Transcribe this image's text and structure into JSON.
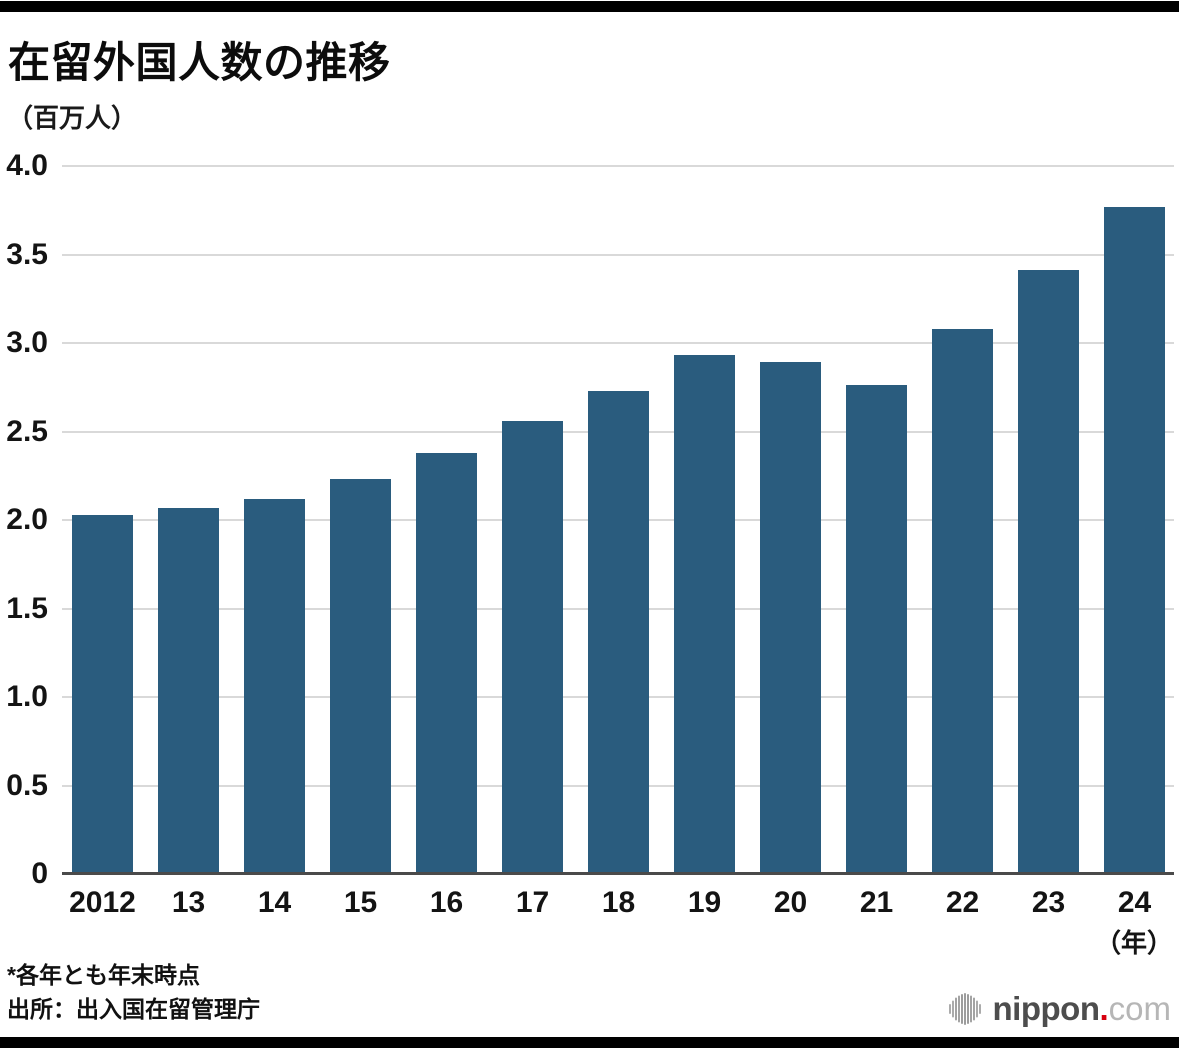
{
  "header": {
    "title": "在留外国人数の推移",
    "unit_label": "（百万人）"
  },
  "chart_data": {
    "type": "bar",
    "title": "在留外国人数の推移",
    "ylabel": "（百万人）",
    "xlabel_unit": "（年）",
    "categories": [
      "2012",
      "13",
      "14",
      "15",
      "16",
      "17",
      "18",
      "19",
      "20",
      "21",
      "22",
      "23",
      "24"
    ],
    "values": [
      2.03,
      2.07,
      2.12,
      2.23,
      2.38,
      2.56,
      2.73,
      2.93,
      2.89,
      2.76,
      3.08,
      3.41,
      3.77
    ],
    "ylim": [
      0,
      4.0
    ],
    "yticks": [
      {
        "value": 4.0,
        "label": "4.0"
      },
      {
        "value": 3.5,
        "label": "3.5"
      },
      {
        "value": 3.0,
        "label": "3.0"
      },
      {
        "value": 2.5,
        "label": "2.5"
      },
      {
        "value": 2.0,
        "label": "2.0"
      },
      {
        "value": 1.5,
        "label": "1.5"
      },
      {
        "value": 1.0,
        "label": "1.0"
      },
      {
        "value": 0.5,
        "label": "0.5"
      },
      {
        "value": 0,
        "label": "0"
      }
    ],
    "grid": true,
    "legend": "none",
    "bar_color": "#2a5c7e",
    "gridline_color": "#d9d9d9",
    "axis_color": "#4a4a4a"
  },
  "footer": {
    "note": "*各年とも年末時点",
    "source": "出所：出入国在留管理庁"
  },
  "logo": {
    "name": "nippon",
    "dot": ".",
    "tld": "com"
  }
}
